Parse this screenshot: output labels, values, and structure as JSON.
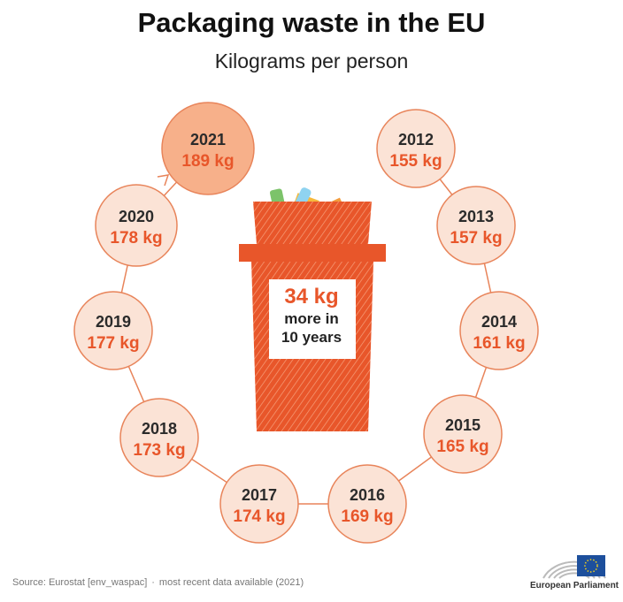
{
  "header": {
    "title": "Packaging waste in the EU",
    "subtitle": "Kilograms per person"
  },
  "highlight": {
    "value": "34 kg",
    "line1": "more in",
    "line2": "10 years"
  },
  "footer": {
    "source": "Source: Eurostat [env_waspac]",
    "note": "most recent data available (2021)",
    "org": "European Parliament"
  },
  "colors": {
    "accent": "#e8562a",
    "bubble_fill": "#fbe3d6",
    "bubble_fill_latest": "#f7b08a",
    "bubble_stroke": "#e8845a"
  },
  "chart_data": {
    "type": "bubble-sequence",
    "title": "Packaging waste in the EU",
    "subtitle": "Kilograms per person",
    "unit": "kg",
    "categories": [
      "2012",
      "2013",
      "2014",
      "2015",
      "2016",
      "2017",
      "2018",
      "2019",
      "2020",
      "2021"
    ],
    "values": [
      155,
      157,
      161,
      165,
      169,
      174,
      173,
      177,
      178,
      189
    ],
    "labels": [
      "155 kg",
      "157 kg",
      "161 kg",
      "165 kg",
      "169 kg",
      "174 kg",
      "173 kg",
      "177 kg",
      "178 kg",
      "189 kg"
    ]
  }
}
